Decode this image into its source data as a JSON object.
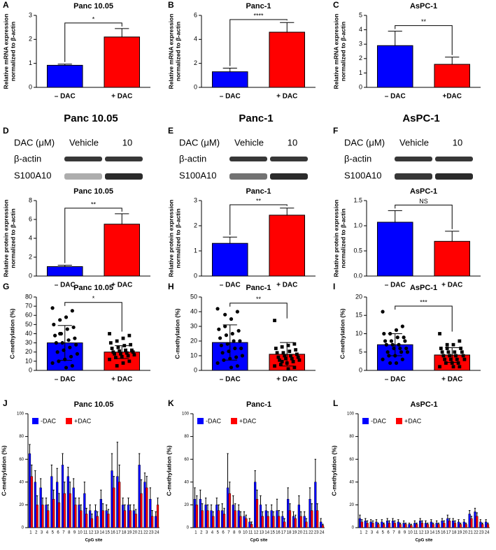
{
  "chart_data": [
    {
      "type": "bar",
      "panel": "A",
      "title": "Panc 10.05",
      "ylabel": [
        "Relative mRNA expression",
        "normalized to β-actin"
      ],
      "categories": [
        "– DAC",
        "+ DAC"
      ],
      "values": [
        0.92,
        2.1
      ],
      "errors": [
        0.05,
        0.35
      ],
      "colors": [
        "#0000ff",
        "#ff0000"
      ],
      "ylim": [
        0,
        3
      ],
      "yticks": [
        0,
        1,
        2,
        3
      ],
      "significance": "*"
    },
    {
      "type": "bar",
      "panel": "B",
      "title": "Panc-1",
      "ylabel": [
        "Relative mRNA expression",
        "normalized to β-actin"
      ],
      "categories": [
        "– DAC",
        "+ DAC"
      ],
      "values": [
        1.3,
        4.6
      ],
      "errors": [
        0.3,
        0.8
      ],
      "colors": [
        "#0000ff",
        "#ff0000"
      ],
      "ylim": [
        0,
        6
      ],
      "yticks": [
        0,
        2,
        4,
        6
      ],
      "significance": "****"
    },
    {
      "type": "bar",
      "panel": "C",
      "title": "AsPC-1",
      "ylabel": [
        "Relative mRNA expression",
        "normalized to β-actin"
      ],
      "categories": [
        "– DAC",
        "+DAC"
      ],
      "values": [
        2.9,
        1.6
      ],
      "errors": [
        1.0,
        0.5
      ],
      "colors": [
        "#0000ff",
        "#ff0000"
      ],
      "ylim": [
        0,
        5
      ],
      "yticks": [
        0,
        1,
        2,
        3,
        4,
        5
      ],
      "significance": "**"
    },
    {
      "type": "bar",
      "title": "Panc 10.05",
      "ylabel": [
        "Relative protein expression",
        "normalized to β-actin"
      ],
      "categories": [
        "– DAC",
        "+ DAC"
      ],
      "values": [
        1.0,
        5.5
      ],
      "errors": [
        0.15,
        1.1
      ],
      "colors": [
        "#0000ff",
        "#ff0000"
      ],
      "ylim": [
        0,
        8
      ],
      "yticks": [
        0,
        2,
        4,
        6,
        8
      ],
      "significance": "**"
    },
    {
      "type": "bar",
      "title": "Panc-1",
      "ylabel": [
        "Relative protein expression",
        "normalized to β-actin"
      ],
      "categories": [
        "– DAC",
        "+ DAC"
      ],
      "values": [
        1.3,
        2.42
      ],
      "errors": [
        0.25,
        0.28
      ],
      "colors": [
        "#0000ff",
        "#ff0000"
      ],
      "ylim": [
        0,
        3
      ],
      "yticks": [
        0,
        1,
        2,
        3
      ],
      "significance": "**"
    },
    {
      "type": "bar",
      "title": "AsPC-1",
      "ylabel": [
        "Relative protein expression",
        "normalized to β-actin"
      ],
      "categories": [
        "– DAC",
        "+ DAC"
      ],
      "values": [
        1.07,
        0.69
      ],
      "errors": [
        0.23,
        0.2
      ],
      "colors": [
        "#0000ff",
        "#ff0000"
      ],
      "ylim": [
        0,
        1.5
      ],
      "yticks": [
        {
          "value": 0,
          "label": "0.0"
        },
        {
          "value": 0.5,
          "label": "0.5"
        },
        {
          "value": 1,
          "label": "1.0"
        },
        {
          "value": 1.5,
          "label": "1.5"
        }
      ],
      "significance": "NS"
    },
    {
      "type": "bar",
      "panel": "G",
      "title": "Panc 10.05",
      "ylabel": [
        "C-methylation (%)"
      ],
      "categories": [
        "– DAC",
        "+ DAC"
      ],
      "values": [
        30,
        20
      ],
      "errors": [
        19,
        7
      ],
      "colors": [
        "#0000ff",
        "#ff0000"
      ],
      "ylim": [
        0,
        80
      ],
      "yticks": [
        0,
        10,
        20,
        30,
        40,
        50,
        60,
        70,
        80
      ],
      "significance": "*",
      "points": [
        [
          68,
          65,
          58,
          55,
          50,
          47,
          45,
          40,
          38,
          35,
          33,
          30,
          30,
          28,
          25,
          22,
          20,
          18,
          15,
          12,
          10,
          8,
          5,
          3,
          40
        ],
        [
          40,
          38,
          35,
          32,
          30,
          28,
          27,
          25,
          24,
          22,
          22,
          21,
          20,
          20,
          19,
          18,
          18,
          17,
          16,
          15,
          14,
          12,
          10,
          8,
          5
        ]
      ]
    },
    {
      "type": "bar",
      "panel": "H",
      "title": "Panc-1",
      "ylabel": [
        "C-methylation (%)"
      ],
      "categories": [
        "– DAC",
        "+ DAC"
      ],
      "values": [
        19,
        11
      ],
      "errors": [
        12,
        8
      ],
      "colors": [
        "#0000ff",
        "#ff0000"
      ],
      "ylim": [
        0,
        50
      ],
      "yticks": [
        0,
        10,
        20,
        30,
        40,
        50
      ],
      "significance": "**",
      "points": [
        [
          42,
          40,
          35,
          30,
          28,
          27,
          25,
          24,
          22,
          20,
          20,
          18,
          17,
          15,
          15,
          13,
          12,
          10,
          9,
          8,
          7,
          5,
          3,
          2,
          38
        ],
        [
          34,
          18,
          17,
          16,
          15,
          14,
          13,
          12,
          12,
          11,
          10,
          10,
          9,
          9,
          8,
          8,
          7,
          7,
          6,
          5,
          4,
          3,
          2,
          1,
          6
        ]
      ]
    },
    {
      "type": "bar",
      "panel": "I",
      "title": "AsPC-1",
      "ylabel": [
        "C-methylation (%)"
      ],
      "categories": [
        "– DAC",
        "+ DAC"
      ],
      "values": [
        7,
        4.2
      ],
      "errors": [
        3,
        2
      ],
      "colors": [
        "#0000ff",
        "#ff0000"
      ],
      "ylim": [
        0,
        20
      ],
      "yticks": [
        0,
        5,
        10,
        15,
        20
      ],
      "significance": "***",
      "points": [
        [
          16,
          12,
          11,
          10,
          10,
          9,
          9,
          8,
          8,
          8,
          7,
          7,
          7,
          6,
          6,
          6,
          5,
          5,
          5,
          4,
          4,
          3,
          3,
          2,
          2
        ],
        [
          10,
          8,
          7,
          7,
          6,
          6,
          5,
          5,
          5,
          5,
          4,
          4,
          4,
          4,
          3,
          3,
          3,
          3,
          2,
          2,
          2,
          1,
          1,
          1,
          6
        ]
      ]
    },
    {
      "type": "grouped_bar",
      "panel": "J",
      "title": "Panc 10.05",
      "ylabel": [
        "C-methylation (%)"
      ],
      "xlabel": "CpG site",
      "categories": [
        1,
        2,
        3,
        4,
        5,
        6,
        7,
        8,
        9,
        10,
        11,
        12,
        13,
        14,
        15,
        16,
        17,
        18,
        19,
        20,
        21,
        22,
        23,
        24
      ],
      "ylim": [
        0,
        100
      ],
      "yticks": [
        0,
        20,
        40,
        60,
        80,
        100
      ],
      "series": [
        {
          "name": "-DAC",
          "color": "#0000ff",
          "values": [
            65,
            40,
            35,
            20,
            45,
            40,
            55,
            45,
            35,
            20,
            30,
            15,
            15,
            25,
            15,
            50,
            45,
            20,
            20,
            15,
            55,
            40,
            25,
            10
          ],
          "errors": [
            8,
            10,
            8,
            6,
            10,
            12,
            10,
            8,
            8,
            6,
            10,
            5,
            5,
            8,
            5,
            15,
            30,
            6,
            6,
            5,
            10,
            8,
            10,
            4
          ]
        },
        {
          "name": "+DAC",
          "color": "#ff0000",
          "values": [
            45,
            20,
            20,
            15,
            25,
            22,
            30,
            30,
            20,
            15,
            12,
            8,
            10,
            15,
            12,
            35,
            40,
            15,
            15,
            12,
            30,
            35,
            10,
            20
          ],
          "errors": [
            10,
            8,
            6,
            5,
            8,
            8,
            10,
            10,
            6,
            5,
            5,
            4,
            4,
            6,
            4,
            10,
            15,
            5,
            5,
            4,
            12,
            10,
            5,
            6
          ]
        }
      ]
    },
    {
      "type": "grouped_bar",
      "panel": "K",
      "title": "Panc-1",
      "ylabel": [
        "C-methylation (%)"
      ],
      "xlabel": "CpG site",
      "categories": [
        1,
        2,
        3,
        4,
        5,
        6,
        7,
        8,
        9,
        10,
        11,
        12,
        13,
        14,
        15,
        16,
        17,
        18,
        19,
        20,
        21,
        22,
        23,
        24
      ],
      "ylim": [
        0,
        100
      ],
      "yticks": [
        0,
        20,
        40,
        60,
        80,
        100
      ],
      "series": [
        {
          "name": "-DAC",
          "color": "#0000ff",
          "values": [
            25,
            25,
            20,
            15,
            20,
            15,
            35,
            20,
            15,
            10,
            5,
            40,
            20,
            15,
            15,
            15,
            10,
            25,
            10,
            20,
            10,
            25,
            40,
            5
          ],
          "errors": [
            10,
            8,
            6,
            5,
            6,
            6,
            30,
            8,
            5,
            4,
            3,
            10,
            8,
            5,
            5,
            10,
            4,
            10,
            4,
            8,
            4,
            10,
            20,
            3
          ]
        },
        {
          "name": "+DAC",
          "color": "#ff0000",
          "values": [
            20,
            15,
            15,
            10,
            15,
            12,
            30,
            15,
            10,
            8,
            3,
            25,
            10,
            10,
            10,
            10,
            5,
            15,
            8,
            10,
            5,
            15,
            15,
            2
          ],
          "errors": [
            8,
            6,
            5,
            4,
            5,
            5,
            10,
            6,
            4,
            3,
            2,
            8,
            4,
            4,
            4,
            5,
            3,
            6,
            3,
            4,
            3,
            6,
            6,
            1
          ]
        }
      ]
    },
    {
      "type": "grouped_bar",
      "panel": "L",
      "title": "AsPC-1",
      "ylabel": [
        "C-methylation (%)"
      ],
      "xlabel": "CpG site",
      "categories": [
        1,
        2,
        3,
        4,
        5,
        6,
        7,
        8,
        9,
        10,
        11,
        12,
        13,
        14,
        15,
        16,
        17,
        18,
        19,
        20,
        21,
        22,
        23,
        24
      ],
      "ylim": [
        0,
        100
      ],
      "yticks": [
        0,
        20,
        40,
        60,
        80,
        100
      ],
      "series": [
        {
          "name": "-DAC",
          "color": "#0000ff",
          "values": [
            8,
            6,
            5,
            5,
            5,
            6,
            6,
            5,
            4,
            3,
            4,
            6,
            4,
            5,
            4,
            6,
            8,
            6,
            5,
            5,
            12,
            14,
            5,
            5
          ],
          "errors": [
            3,
            2,
            2,
            2,
            2,
            2,
            2,
            2,
            2,
            1,
            2,
            2,
            2,
            2,
            2,
            2,
            3,
            2,
            2,
            2,
            3,
            3,
            2,
            2
          ]
        },
        {
          "name": "+DAC",
          "color": "#ff0000",
          "values": [
            5,
            4,
            4,
            3,
            3,
            4,
            4,
            3,
            3,
            2,
            3,
            4,
            3,
            3,
            3,
            4,
            6,
            4,
            3,
            3,
            8,
            10,
            3,
            3
          ],
          "errors": [
            2,
            2,
            2,
            1,
            1,
            2,
            2,
            1,
            1,
            1,
            1,
            2,
            1,
            1,
            1,
            2,
            2,
            2,
            1,
            1,
            2,
            3,
            1,
            1
          ]
        }
      ]
    }
  ],
  "blots": [
    {
      "panel": "D",
      "title": "Panc 10.05",
      "dose_label": "DAC (μM)",
      "lanes": [
        "Vehicle",
        "10"
      ],
      "rows": [
        "β-actin",
        "S100A10"
      ]
    },
    {
      "panel": "E",
      "title": "Panc-1",
      "dose_label": "DAC (μM)",
      "lanes": [
        "Vehicle",
        "10"
      ],
      "rows": [
        "β-actin",
        "S100A10"
      ]
    },
    {
      "panel": "F",
      "title": "AsPC-1",
      "dose_label": "DAC (μM)",
      "lanes": [
        "Vehicle",
        "10"
      ],
      "rows": [
        "β-actin",
        "S100A10"
      ]
    }
  ]
}
